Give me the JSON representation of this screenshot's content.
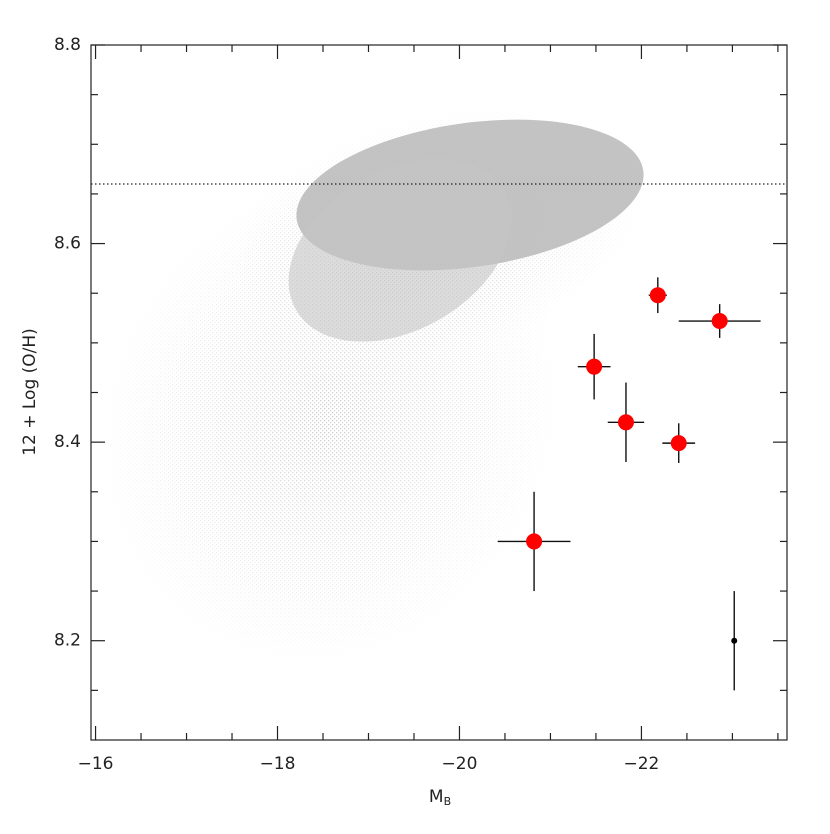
{
  "chart_data": {
    "type": "errorbar_scatter",
    "xlabel": "M",
    "xlabel_sub": "B",
    "ylabel": "12 + Log (O/H)",
    "xlim": [
      -15.95,
      -23.6
    ],
    "ylim": [
      8.1,
      8.8
    ],
    "xticks": [
      {
        "value": -16,
        "label": "−16"
      },
      {
        "value": -18,
        "label": "−18"
      },
      {
        "value": -20,
        "label": "−20"
      },
      {
        "value": -22,
        "label": "−22"
      }
    ],
    "yticks": [
      8.2,
      8.4,
      8.6,
      8.8
    ],
    "xminorticks": [
      -16.5,
      -17,
      -17.5,
      -18.5,
      -19,
      -19.5,
      -20.5,
      -21,
      -21.5,
      -22.5,
      -23,
      -23.5
    ],
    "yminorticks": [
      8.15,
      8.25,
      8.3,
      8.35,
      8.45,
      8.5,
      8.55,
      8.65,
      8.7,
      8.75
    ],
    "hline": 8.66,
    "series": [
      {
        "color": "#ff0000",
        "x": [
          -20.82,
          -21.48,
          -21.83,
          -22.18,
          -22.41,
          -22.86
        ],
        "values": [
          8.3,
          8.476,
          8.42,
          8.548,
          8.399,
          8.522
        ],
        "xerr": [
          0.4,
          0.18,
          0.2,
          0.1,
          0.18,
          0.45
        ],
        "yerr": [
          0.05,
          0.033,
          0.04,
          0.018,
          0.02,
          0.017
        ]
      },
      {
        "color": "#000000",
        "x": [
          -23.02
        ],
        "values": [
          8.2
        ],
        "xerr": [
          0
        ],
        "yerr": [
          0.05
        ]
      }
    ]
  }
}
